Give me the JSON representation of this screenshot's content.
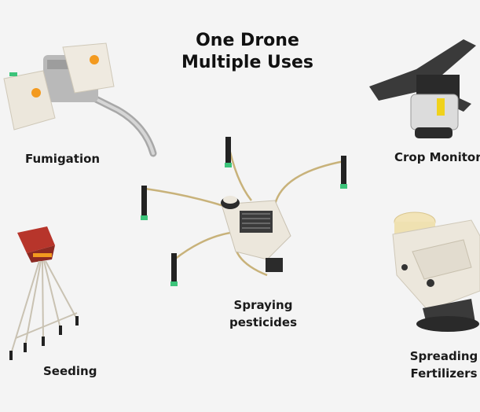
{
  "title": {
    "line1": "One Drone",
    "line2": "Multiple Uses"
  },
  "uses": {
    "fumigation": "Fumigation",
    "crop_monitoring": "Crop Monitoring",
    "spraying_line1": "Spraying",
    "spraying_line2": "pesticides",
    "seeding": "Seeding",
    "spreading_line1": "Spreading",
    "spreading_line2": "Fertilizers"
  },
  "colors": {
    "background": "#f4f4f4",
    "hardware_body": "#ece7dc",
    "accent_orange": "#f39a1f",
    "nozzle_green": "#3cc47a",
    "hose": "#c8b27a",
    "seed_hopper": "#b7352b"
  }
}
